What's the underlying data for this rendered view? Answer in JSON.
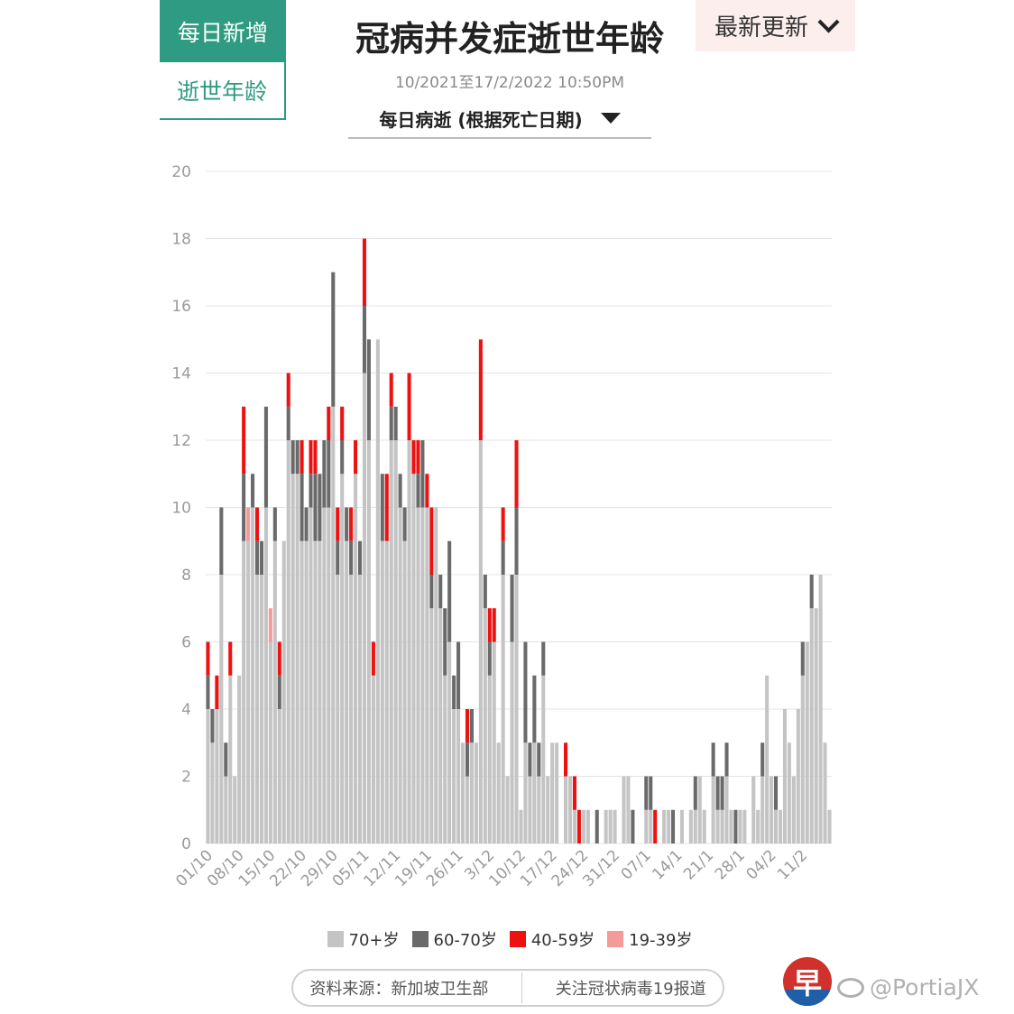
{
  "tabs": [
    {
      "label": "每日新增"
    },
    {
      "label": "逝世年龄"
    }
  ],
  "header": {
    "title": "冠病并发症逝世年龄",
    "subtitle": "10/2021至17/2/2022 10:50PM",
    "latest_label": "最新更新"
  },
  "dropdown": {
    "label": "每日病逝 (根据死亡日期)"
  },
  "colors": {
    "accent": "#2e9b82",
    "age70": "#c4c4c4",
    "age60": "#6a6a6a",
    "age40": "#ee1111",
    "age19": "#f49a9a",
    "grid": "#e4e4e4"
  },
  "chart_data": {
    "type": "bar",
    "stacked": true,
    "ylim": [
      0,
      20
    ],
    "yticks": [
      0,
      2,
      4,
      6,
      8,
      10,
      12,
      14,
      16,
      18,
      20
    ],
    "grid": true,
    "legend_position": "bottom",
    "x_tick_labels": [
      "01/10",
      "08/10",
      "15/10",
      "22/10",
      "29/10",
      "05/11",
      "12/11",
      "19/11",
      "26/11",
      "3/12",
      "10/12",
      "17/12",
      "24/12",
      "31/12",
      "07/1",
      "14/1",
      "21/1",
      "28/1",
      "04/2",
      "11/2"
    ],
    "x_tick_every": 7,
    "series": [
      {
        "name": "70+岁",
        "color": "#c4c4c4",
        "values": [
          4,
          3,
          4,
          8,
          2,
          5,
          2,
          5,
          9,
          9,
          10,
          8,
          8,
          10,
          6,
          9,
          4,
          9,
          12,
          11,
          11,
          9,
          9,
          10,
          9,
          9,
          10,
          10,
          13,
          8,
          11,
          9,
          8,
          11,
          8,
          14,
          12,
          5,
          15,
          9,
          9,
          12,
          12,
          10,
          9,
          12,
          11,
          10,
          10,
          10,
          7,
          10,
          7,
          5,
          6,
          4,
          4,
          3,
          2,
          3,
          3,
          12,
          7,
          5,
          6,
          3,
          8,
          2,
          6,
          8,
          1,
          3,
          2,
          3,
          2,
          5,
          2,
          3,
          3,
          0,
          2,
          2,
          1,
          0,
          1,
          1,
          0,
          0,
          0,
          1,
          1,
          1,
          0,
          2,
          2,
          0,
          0,
          0,
          1,
          1,
          0,
          0,
          1,
          1,
          0,
          0,
          1,
          0,
          1,
          1,
          2,
          1,
          0,
          2,
          1,
          1,
          2,
          1,
          0,
          1,
          1,
          0,
          2,
          1,
          2,
          5,
          2,
          1,
          1,
          4,
          3,
          2,
          4,
          5,
          6,
          7,
          7,
          8,
          3,
          1
        ]
      },
      {
        "name": "60-70岁",
        "color": "#6a6a6a",
        "values": [
          1,
          1,
          0,
          2,
          1,
          0,
          0,
          0,
          2,
          0,
          1,
          1,
          1,
          3,
          0,
          1,
          1,
          0,
          1,
          1,
          1,
          2,
          1,
          1,
          2,
          2,
          2,
          2,
          4,
          1,
          1,
          1,
          1,
          0,
          1,
          2,
          3,
          0,
          0,
          2,
          0,
          1,
          1,
          1,
          1,
          0,
          0,
          1,
          2,
          0,
          1,
          0,
          1,
          2,
          3,
          1,
          2,
          0,
          1,
          1,
          0,
          0,
          1,
          1,
          0,
          0,
          1,
          0,
          2,
          2,
          0,
          3,
          1,
          2,
          1,
          1,
          0,
          0,
          0,
          0,
          0,
          0,
          0,
          0,
          0,
          0,
          0,
          1,
          0,
          0,
          0,
          0,
          0,
          0,
          0,
          1,
          0,
          0,
          1,
          1,
          0,
          0,
          0,
          0,
          1,
          0,
          0,
          0,
          0,
          1,
          0,
          0,
          0,
          1,
          1,
          1,
          1,
          0,
          1,
          0,
          0,
          0,
          0,
          0,
          1,
          0,
          0,
          1,
          0,
          0,
          0,
          0,
          0,
          1,
          0,
          1,
          0,
          0,
          0,
          0
        ]
      },
      {
        "name": "40-59岁",
        "color": "#ee1111",
        "values": [
          1,
          0,
          1,
          0,
          0,
          1,
          0,
          0,
          2,
          0,
          0,
          1,
          0,
          0,
          0,
          0,
          1,
          0,
          1,
          0,
          0,
          1,
          0,
          1,
          1,
          0,
          0,
          1,
          0,
          1,
          1,
          0,
          1,
          1,
          0,
          2,
          0,
          1,
          0,
          0,
          2,
          1,
          0,
          0,
          0,
          2,
          1,
          1,
          0,
          1,
          2,
          0,
          0,
          0,
          0,
          0,
          0,
          0,
          1,
          0,
          0,
          3,
          0,
          1,
          1,
          0,
          1,
          0,
          0,
          2,
          0,
          0,
          0,
          0,
          0,
          0,
          0,
          0,
          0,
          0,
          1,
          0,
          1,
          1,
          0,
          0,
          0,
          0,
          0,
          0,
          0,
          0,
          0,
          0,
          0,
          0,
          0,
          0,
          0,
          0,
          1,
          0,
          0,
          0,
          0,
          0,
          0,
          0,
          0,
          0,
          0,
          0,
          0,
          0,
          0,
          0,
          0,
          0,
          0,
          0,
          0,
          0,
          0,
          0,
          0,
          0,
          0,
          0,
          0,
          0,
          0,
          0,
          0,
          0,
          0,
          0,
          0,
          0,
          0,
          0
        ]
      },
      {
        "name": "19-39岁",
        "color": "#f49a9a",
        "values": [
          0,
          0,
          0,
          0,
          0,
          0,
          0,
          0,
          0,
          1,
          0,
          0,
          0,
          0,
          1,
          0,
          0,
          0,
          0,
          0,
          0,
          0,
          0,
          0,
          0,
          0,
          0,
          0,
          0,
          0,
          0,
          0,
          0,
          0,
          0,
          0,
          0,
          0,
          0,
          0,
          0,
          0,
          0,
          0,
          0,
          0,
          0,
          0,
          0,
          0,
          0,
          0,
          0,
          0,
          0,
          0,
          0,
          0,
          0,
          0,
          0,
          0,
          0,
          0,
          0,
          0,
          0,
          0,
          0,
          0,
          0,
          0,
          0,
          0,
          0,
          0,
          0,
          0,
          0,
          0,
          0,
          0,
          0,
          0,
          0,
          0,
          0,
          0,
          0,
          0,
          0,
          0,
          0,
          0,
          0,
          0,
          0,
          0,
          0,
          0,
          0,
          0,
          0,
          0,
          0,
          0,
          0,
          0,
          0,
          0,
          0,
          0,
          0,
          0,
          0,
          0,
          0,
          0,
          0,
          0,
          0,
          0,
          0,
          0,
          0,
          0,
          0,
          0,
          0,
          0,
          0,
          0,
          0,
          0,
          0,
          0,
          0,
          0,
          0,
          0
        ]
      }
    ]
  },
  "legend": [
    {
      "label": "70+岁",
      "color": "#c4c4c4"
    },
    {
      "label": "60-70岁",
      "color": "#6a6a6a"
    },
    {
      "label": "40-59岁",
      "color": "#ee1111"
    },
    {
      "label": "19-39岁",
      "color": "#f49a9a"
    }
  ],
  "footer": {
    "source": "资料来源：新加坡卫生部",
    "follow": "关注冠状病毒19报道",
    "logo_char": "早",
    "watermark": "@PortiaJX"
  }
}
